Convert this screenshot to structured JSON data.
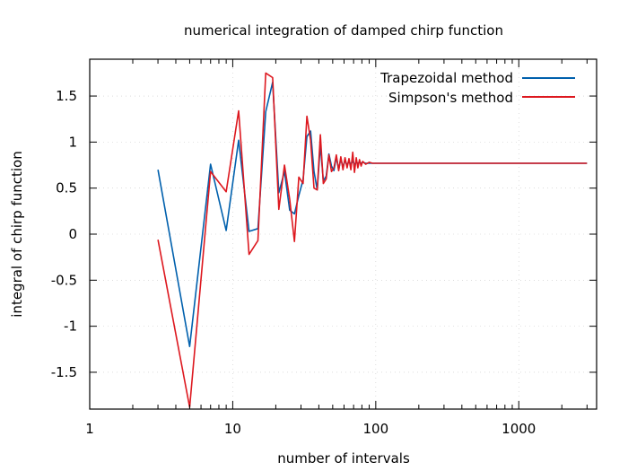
{
  "chart_data": {
    "type": "line",
    "title": "numerical integration of damped chirp function",
    "xlabel": "number of intervals",
    "ylabel": "integral of chirp function",
    "xscale": "log",
    "xlim": [
      1,
      3500
    ],
    "ylim": [
      -1.9,
      1.9
    ],
    "xticks": [
      1,
      10,
      100,
      1000
    ],
    "xtick_labels": [
      "1",
      "10",
      "100",
      "1000"
    ],
    "yticks": [
      -1.5,
      -1,
      -0.5,
      0,
      0.5,
      1,
      1.5
    ],
    "ytick_labels": [
      "-1.5",
      "-1",
      "-0.5",
      "0",
      "0.5",
      "1",
      "1.5"
    ],
    "grid": true,
    "legend": "top-right",
    "series": [
      {
        "name": "Trapezoidal method",
        "color": "#0060ad",
        "x": [
          3,
          5,
          7,
          9,
          11,
          13,
          15,
          17,
          19,
          21,
          23,
          25,
          27,
          29,
          31,
          33,
          35,
          37,
          39,
          41,
          43,
          45,
          47,
          49,
          51,
          53,
          55,
          57,
          59,
          61,
          63,
          65,
          67,
          69,
          71,
          73,
          75,
          77,
          79,
          81,
          85,
          90,
          95,
          100,
          110,
          120,
          130,
          150,
          200,
          300,
          500,
          1000,
          2000,
          3000
        ],
        "y": [
          0.7,
          -1.22,
          0.76,
          0.04,
          1.02,
          0.03,
          0.06,
          1.33,
          1.65,
          0.45,
          0.68,
          0.26,
          0.22,
          0.42,
          0.59,
          1.06,
          1.12,
          0.68,
          0.48,
          0.97,
          0.58,
          0.63,
          0.87,
          0.74,
          0.69,
          0.84,
          0.7,
          0.82,
          0.73,
          0.8,
          0.75,
          0.79,
          0.76,
          0.79,
          0.76,
          0.78,
          0.77,
          0.78,
          0.77,
          0.78,
          0.77,
          0.77,
          0.77,
          0.77,
          0.77,
          0.77,
          0.77,
          0.77,
          0.77,
          0.77,
          0.77,
          0.77,
          0.77,
          0.77
        ]
      },
      {
        "name": "Simpson's method",
        "color": "#dd181f",
        "x": [
          3,
          5,
          7,
          9,
          11,
          13,
          15,
          17,
          19,
          21,
          23,
          25,
          27,
          29,
          31,
          33,
          35,
          37,
          39,
          41,
          43,
          45,
          47,
          49,
          51,
          53,
          55,
          57,
          59,
          61,
          63,
          65,
          67,
          69,
          71,
          73,
          75,
          77,
          79,
          81,
          85,
          90,
          95,
          100,
          110,
          120,
          130,
          150,
          200,
          300,
          500,
          1000,
          2000,
          3000
        ],
        "y": [
          -0.06,
          -1.88,
          0.68,
          0.46,
          1.34,
          -0.22,
          -0.07,
          1.75,
          1.7,
          0.27,
          0.75,
          0.38,
          -0.08,
          0.62,
          0.55,
          1.28,
          1.02,
          0.5,
          0.48,
          1.08,
          0.55,
          0.6,
          0.86,
          0.68,
          0.72,
          0.86,
          0.69,
          0.84,
          0.7,
          0.83,
          0.72,
          0.82,
          0.7,
          0.89,
          0.67,
          0.83,
          0.72,
          0.81,
          0.74,
          0.79,
          0.76,
          0.78,
          0.77,
          0.77,
          0.77,
          0.77,
          0.77,
          0.77,
          0.77,
          0.77,
          0.77,
          0.77,
          0.77,
          0.77
        ]
      }
    ]
  }
}
